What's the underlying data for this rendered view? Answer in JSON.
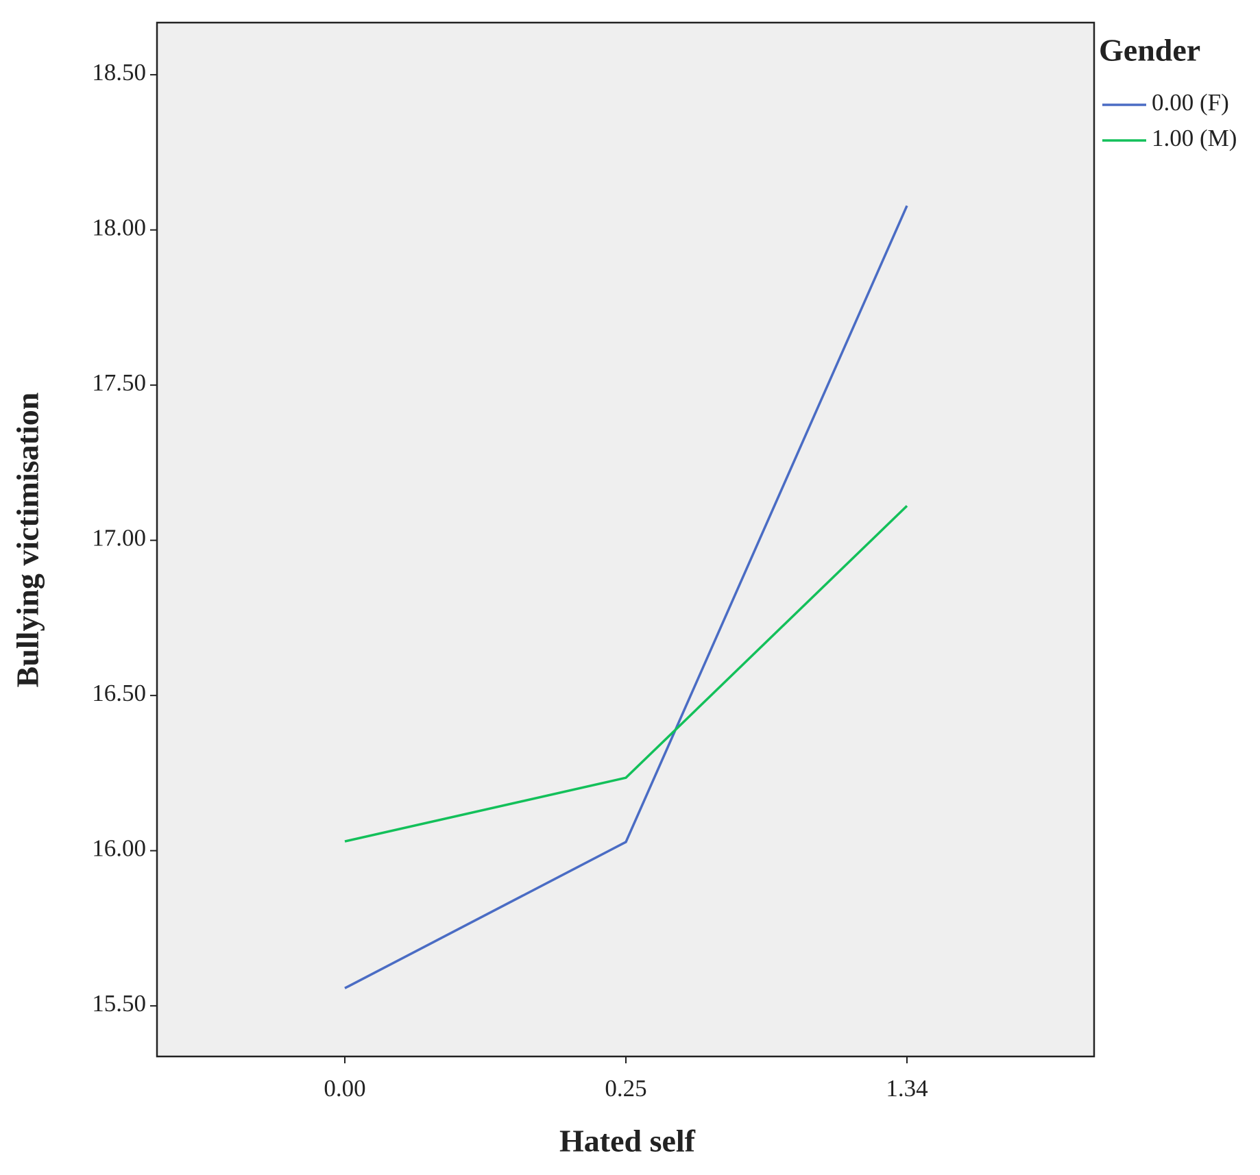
{
  "chart_data": {
    "type": "line",
    "x_label": "Hated self",
    "y_label": "Bullying victimisation",
    "legend_title": "Gender",
    "legend_position": "right",
    "categories": [
      "0.00",
      "0.25",
      "1.34"
    ],
    "series": [
      {
        "name": "0.00 (F)",
        "color": "#4a6cc4",
        "values": [
          15.557,
          16.028,
          18.078
        ]
      },
      {
        "name": "1.00 (M)",
        "color": "#13c05a",
        "values": [
          16.03,
          16.235,
          17.111
        ]
      }
    ],
    "ylim": [
      15.337,
      18.668
    ],
    "yticks": [
      {
        "value": 15.5,
        "label": "15.50"
      },
      {
        "value": 16,
        "label": "16.00"
      },
      {
        "value": 16.5,
        "label": "16.50"
      },
      {
        "value": 17,
        "label": "17.00"
      },
      {
        "value": 17.5,
        "label": "17.50"
      },
      {
        "value": 18,
        "label": "18.00"
      },
      {
        "value": 18.5,
        "label": "18.50"
      }
    ],
    "grid": false,
    "plot_background": "#efefef"
  }
}
